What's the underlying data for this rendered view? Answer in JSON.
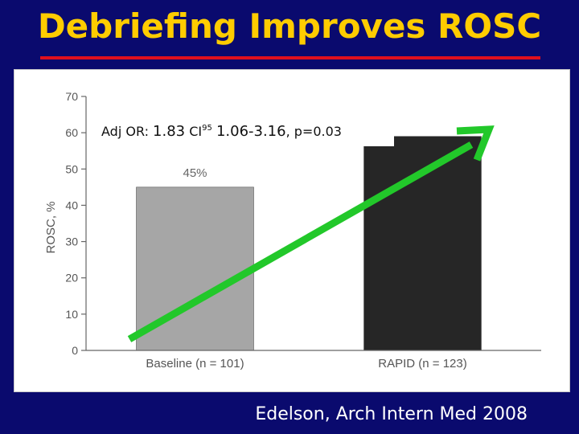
{
  "slide": {
    "title": "Debriefing Improves ROSC",
    "citation": "Edelson, Arch Intern Med 2008"
  },
  "colors": {
    "background": "#0a0a6e",
    "title": "#ffcc00",
    "title_rule": "#e0101e",
    "arrow": "#22c82a"
  },
  "chart_data": {
    "type": "bar",
    "categories": [
      "Baseline (n = 101)",
      "RAPID (n = 123)"
    ],
    "values": [
      45,
      59
    ],
    "bar_colors": [
      "#a6a6a6",
      "#262626"
    ],
    "data_labels": [
      "45%",
      ""
    ],
    "ylabel": "ROSC, %",
    "ylim": [
      0,
      70
    ],
    "yticks": [
      0,
      10,
      20,
      30,
      40,
      50,
      60,
      70
    ],
    "annotation": {
      "text_prefix": "Adj OR: ",
      "or_value": "1.83",
      "ci_label": "CI",
      "ci_superscript": "95",
      "ci_range": "1.06-3.16",
      "p_value": ", p=0.03"
    },
    "trend_arrow": {
      "color": "#22c82a",
      "direction": "up-right"
    }
  }
}
